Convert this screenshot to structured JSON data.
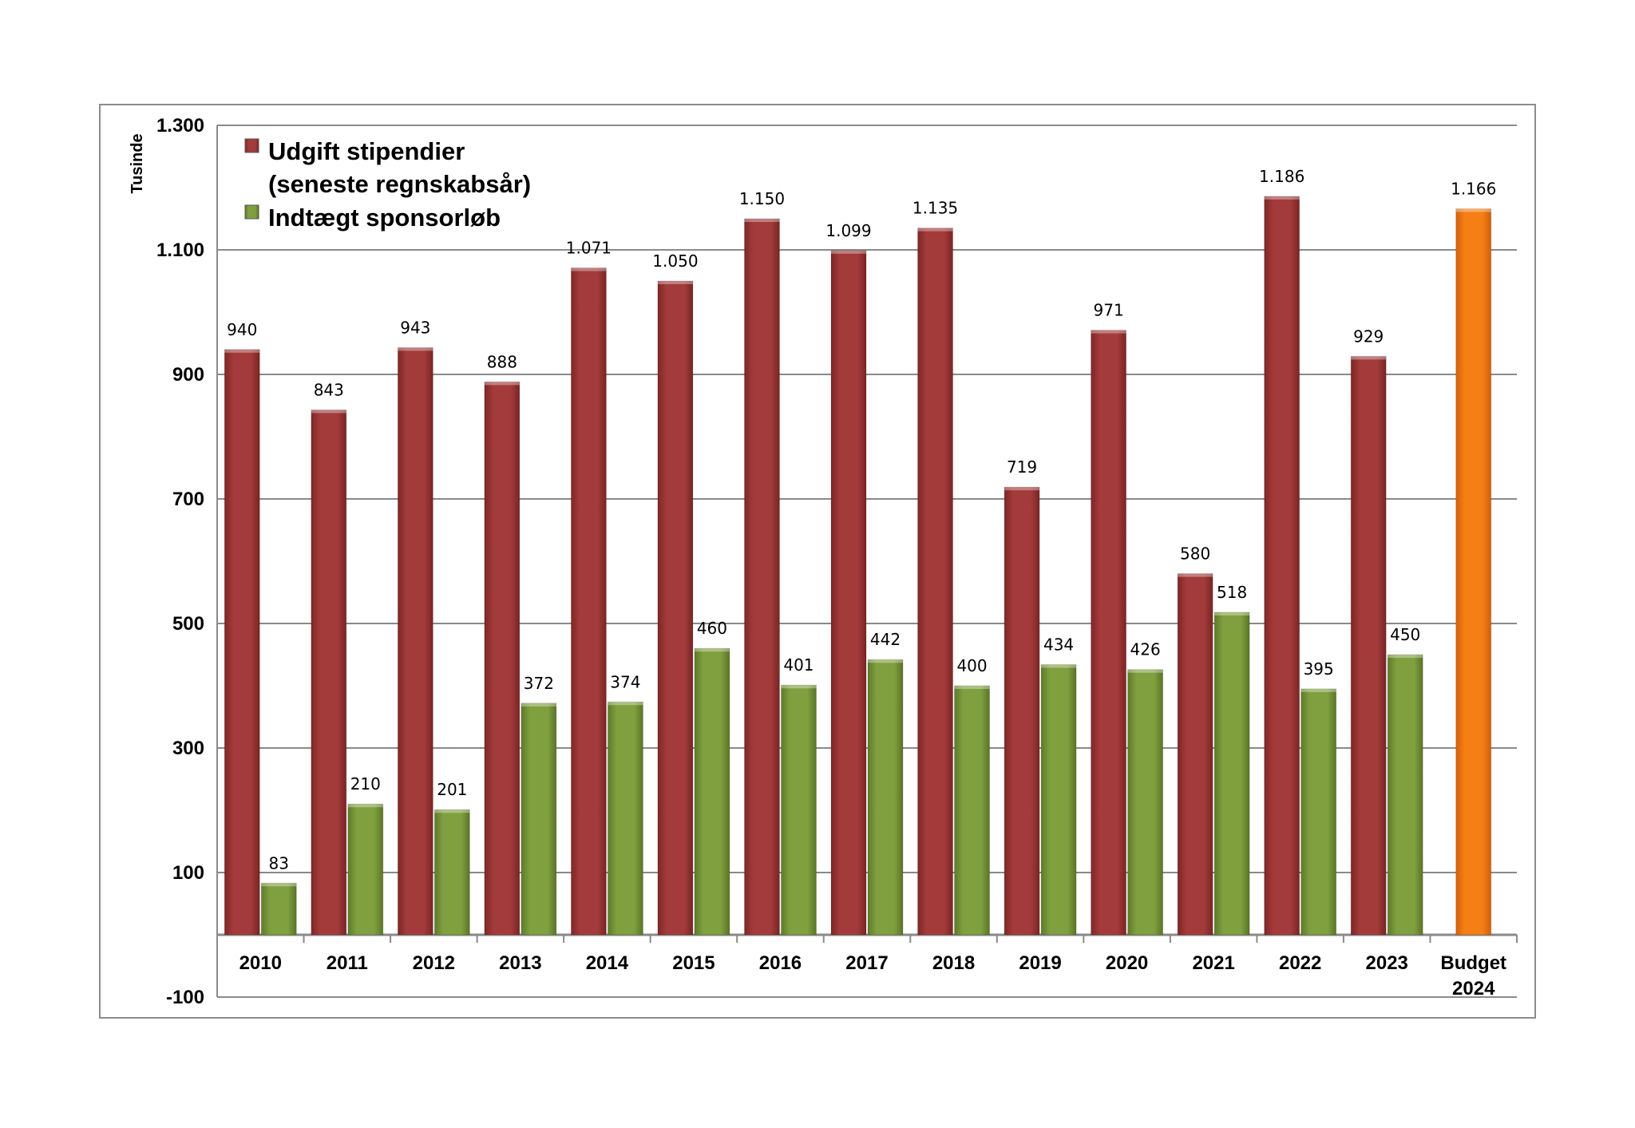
{
  "chart_data": {
    "type": "bar",
    "title": "",
    "xlabel": "",
    "ylabel": "Tusinde",
    "ylim": [
      -100,
      1300
    ],
    "yticks": [
      -100,
      100,
      300,
      500,
      700,
      900,
      1100,
      1300
    ],
    "ytick_labels": [
      "-100",
      "100",
      "300",
      "500",
      "700",
      "900",
      "1.100",
      "1.300"
    ],
    "grid": true,
    "legend_position": "top-left",
    "categories": [
      "2010",
      "2011",
      "2012",
      "2013",
      "2014",
      "2015",
      "2016",
      "2017",
      "2018",
      "2019",
      "2020",
      "2021",
      "2022",
      "2023",
      "Budget 2024"
    ],
    "series": [
      {
        "name": "Udgift stipendier (seneste regnskabsår)",
        "legend_lines": [
          "Udgift stipendier",
          "(seneste regnskabsår)"
        ],
        "color": "#a33b3b",
        "values": [
          940,
          843,
          943,
          888,
          1071,
          1050,
          1150,
          1099,
          1135,
          719,
          971,
          580,
          1186,
          929,
          null
        ],
        "labels": [
          "940",
          "843",
          "943",
          "888",
          "1.071",
          "1.050",
          "1.150",
          "1.099",
          "1.135",
          "719",
          "971",
          "580",
          "1.186",
          "929",
          ""
        ]
      },
      {
        "name": "Indtægt sponsorløb",
        "legend_lines": [
          "Indtægt sponsorløb"
        ],
        "color": "#7f9f3f",
        "values": [
          83,
          210,
          201,
          372,
          374,
          460,
          401,
          442,
          400,
          434,
          426,
          518,
          395,
          450,
          null
        ],
        "labels": [
          "83",
          "210",
          "201",
          "372",
          "374",
          "460",
          "401",
          "442",
          "400",
          "434",
          "426",
          "518",
          "395",
          "450",
          ""
        ]
      },
      {
        "name": "",
        "color": "#f07b12",
        "values": [
          null,
          null,
          null,
          null,
          null,
          null,
          null,
          null,
          null,
          null,
          null,
          null,
          null,
          null,
          1166
        ],
        "labels": [
          "",
          "",
          "",
          "",
          "",
          "",
          "",
          "",
          "",
          "",
          "",
          "",
          "",
          "",
          "1.166"
        ]
      }
    ]
  }
}
